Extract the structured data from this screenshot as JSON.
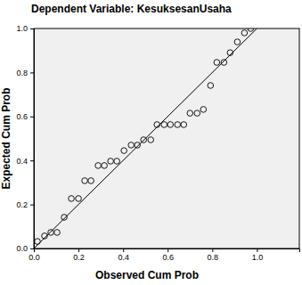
{
  "chart_data": {
    "type": "scatter",
    "title": "Dependent Variable: KesuksesanUsaha",
    "x_label": "Observed Cum Prob",
    "y_label": "Expected Cum Prob",
    "xlim": [
      0,
      1.19
    ],
    "ylim": [
      0,
      1
    ],
    "xticks": [
      {
        "value": 0,
        "label": "0.0"
      },
      {
        "value": 0.2,
        "label": "0.2"
      },
      {
        "value": 0.4,
        "label": "0.4"
      },
      {
        "value": 0.6,
        "label": "0.6"
      },
      {
        "value": 0.8,
        "label": "0.8"
      },
      {
        "value": 1,
        "label": "1.0"
      }
    ],
    "yticks": [
      {
        "value": 0,
        "label": "0.0"
      },
      {
        "value": 0.2,
        "label": "0.2"
      },
      {
        "value": 0.4,
        "label": "0.4"
      },
      {
        "value": 0.6,
        "label": "0.6"
      },
      {
        "value": 0.8,
        "label": "0.8"
      },
      {
        "value": 1,
        "label": "1.0"
      }
    ],
    "grid": false,
    "series": [
      {
        "type": "scatter",
        "marker": "circle",
        "color": "#000000",
        "x": [
          0.016,
          0.048,
          0.076,
          0.104,
          0.136,
          0.168,
          0.2,
          0.228,
          0.256,
          0.288,
          0.316,
          0.344,
          0.372,
          0.404,
          0.436,
          0.464,
          0.492,
          0.524,
          0.552,
          0.584,
          0.612,
          0.644,
          0.672,
          0.7,
          0.732,
          0.76,
          0.792,
          0.82,
          0.852,
          0.88,
          0.912,
          0.944,
          0.972
        ],
        "values": [
          0.032,
          0.057,
          0.073,
          0.073,
          0.142,
          0.227,
          0.227,
          0.308,
          0.308,
          0.377,
          0.377,
          0.397,
          0.397,
          0.445,
          0.47,
          0.47,
          0.494,
          0.494,
          0.563,
          0.563,
          0.563,
          0.563,
          0.563,
          0.615,
          0.615,
          0.632,
          0.741,
          0.846,
          0.846,
          0.89,
          0.939,
          0.98,
          1.0
        ]
      },
      {
        "type": "line",
        "line_style": "solid",
        "color": "#000000",
        "x": [
          0,
          1
        ],
        "values": [
          0,
          1
        ]
      }
    ]
  }
}
